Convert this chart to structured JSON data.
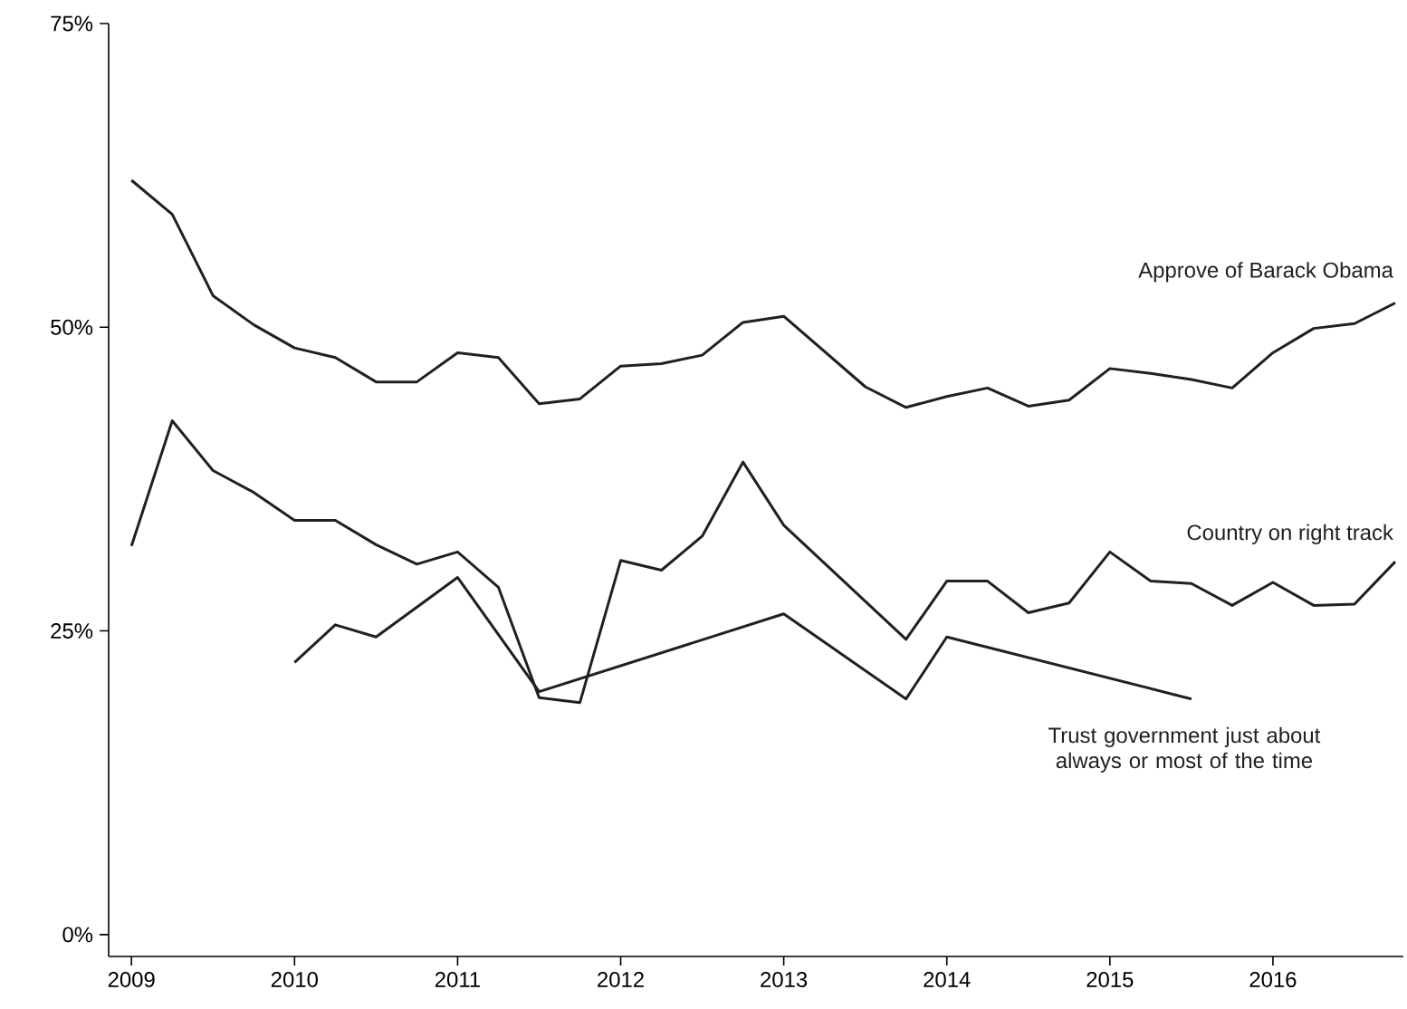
{
  "chart_data": {
    "type": "line",
    "xlim": [
      2008.86,
      2016.8
    ],
    "ylim": [
      -1.8,
      75
    ],
    "xticks": [
      2009,
      2010,
      2011,
      2012,
      2013,
      2014,
      2015,
      2016
    ],
    "yticks": [
      {
        "value": 0,
        "label": "0%"
      },
      {
        "value": 25,
        "label": "25%"
      },
      {
        "value": 50,
        "label": "50%"
      },
      {
        "value": 75,
        "label": "75%"
      }
    ],
    "series": [
      {
        "name": "Approve of Barack Obama",
        "color": "#231f20",
        "x": [
          2009.0,
          2009.25,
          2009.5,
          2009.75,
          2010.0,
          2010.25,
          2010.5,
          2010.75,
          2011.0,
          2011.25,
          2011.5,
          2011.75,
          2012.0,
          2012.25,
          2012.5,
          2012.75,
          2013.0,
          2013.5,
          2013.75,
          2014.0,
          2014.25,
          2014.5,
          2014.75,
          2015.0,
          2015.25,
          2015.5,
          2015.75,
          2016.0,
          2016.25,
          2016.5,
          2016.75
        ],
        "values": [
          62.1,
          59.3,
          52.6,
          50.2,
          48.3,
          47.5,
          45.5,
          45.5,
          47.9,
          47.5,
          43.7,
          44.1,
          46.8,
          47.0,
          47.7,
          50.4,
          50.9,
          45.1,
          43.4,
          44.3,
          45.0,
          43.5,
          44.0,
          46.6,
          46.2,
          45.7,
          45.0,
          47.9,
          49.9,
          50.3,
          52.0
        ]
      },
      {
        "name": "Country on right track",
        "color": "#231f20",
        "x": [
          2009.0,
          2009.25,
          2009.5,
          2009.75,
          2010.0,
          2010.25,
          2010.5,
          2010.75,
          2011.0,
          2011.25,
          2011.5,
          2011.75,
          2012.0,
          2012.25,
          2012.5,
          2012.75,
          2013.0,
          2013.75,
          2014.0,
          2014.25,
          2014.5,
          2014.75,
          2015.0,
          2015.25,
          2015.5,
          2015.75,
          2016.0,
          2016.25,
          2016.5,
          2016.75
        ],
        "values": [
          32.0,
          42.3,
          38.2,
          36.4,
          34.1,
          34.1,
          32.1,
          30.5,
          31.5,
          28.6,
          19.5,
          19.1,
          30.8,
          30.0,
          32.8,
          38.9,
          33.7,
          24.3,
          29.1,
          29.1,
          26.5,
          27.3,
          31.5,
          29.1,
          28.9,
          27.1,
          29.0,
          27.1,
          27.2,
          30.7
        ]
      },
      {
        "name": "Trust government just about always or most of the time",
        "color": "#231f20",
        "x": [
          2010.0,
          2010.25,
          2010.5,
          2011.0,
          2011.5,
          2013.0,
          2013.75,
          2014.0,
          2015.5
        ],
        "values": [
          22.4,
          25.5,
          24.5,
          29.4,
          20.0,
          26.4,
          19.4,
          24.5,
          19.4
        ]
      }
    ]
  }
}
